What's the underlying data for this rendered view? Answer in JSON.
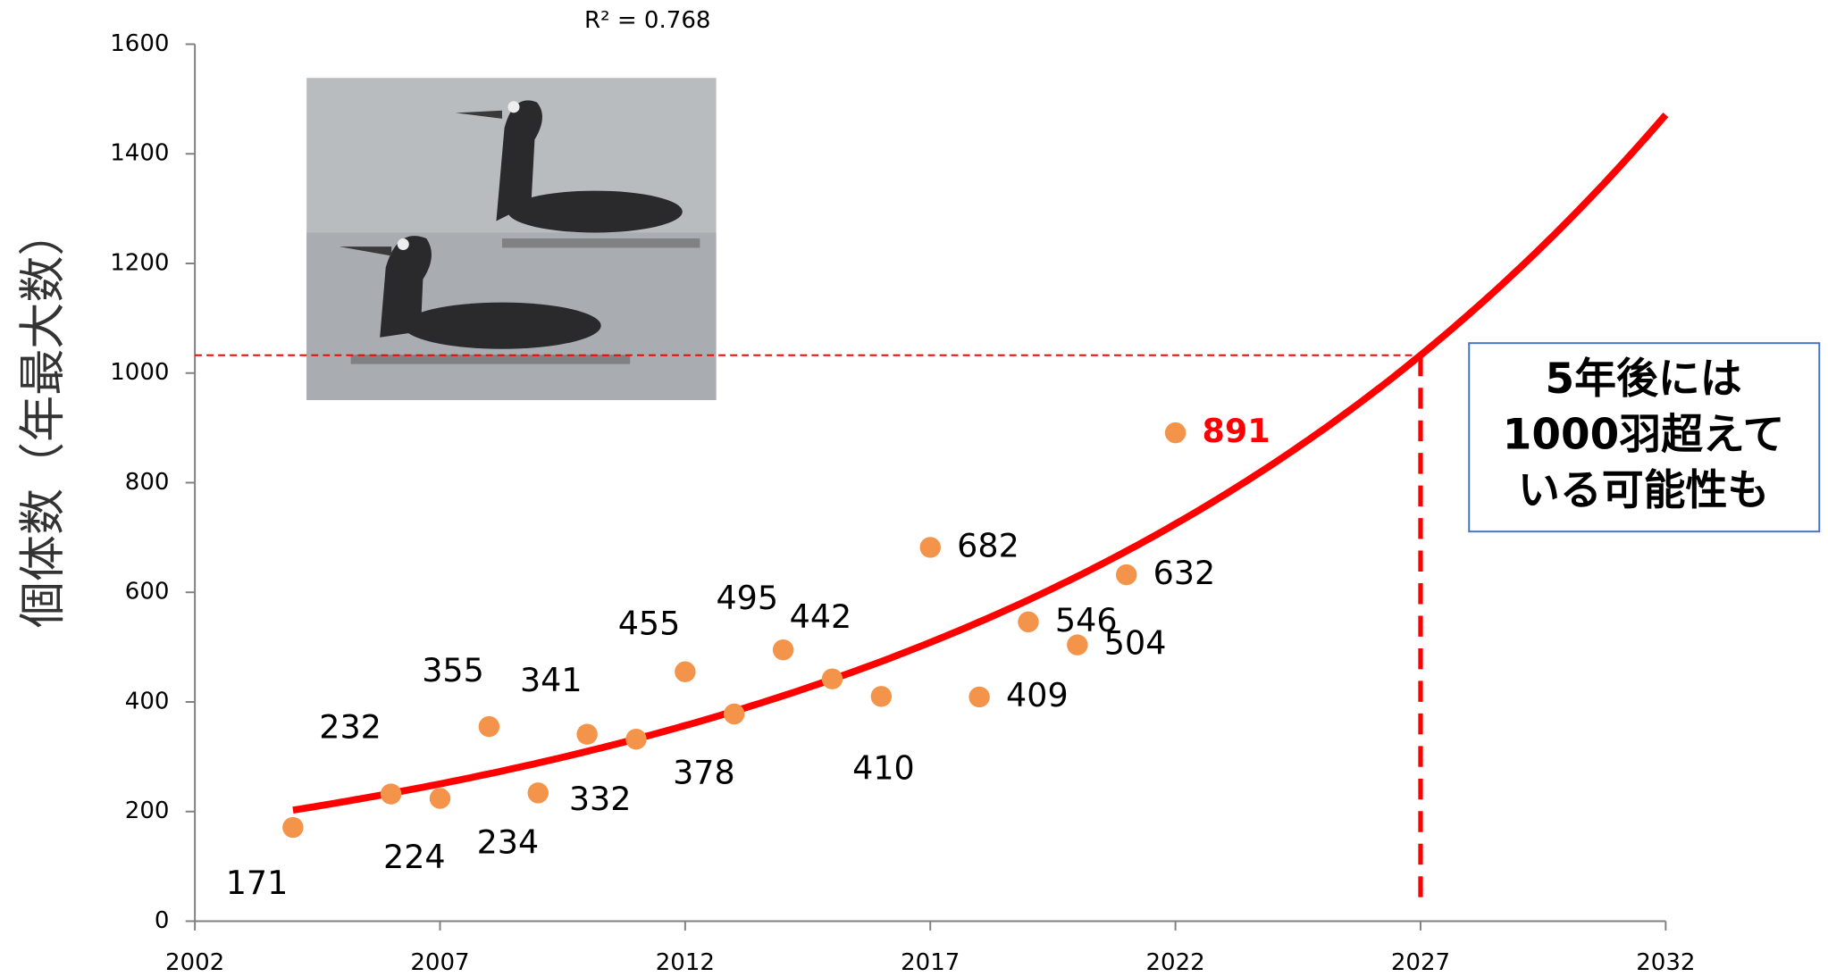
{
  "chart_data": {
    "type": "scatter",
    "r2_label": "R² = 0.768",
    "y_label": "個体数（年最大数）",
    "x": [
      2004,
      2006,
      2007,
      2008,
      2009,
      2010,
      2011,
      2012,
      2013,
      2014,
      2015,
      2016,
      2017,
      2018,
      2019,
      2020,
      2021,
      2022
    ],
    "values": [
      171,
      232,
      224,
      355,
      234,
      341,
      332,
      455,
      378,
      495,
      442,
      410,
      682,
      409,
      546,
      504,
      632,
      891
    ],
    "color": "#f4944a",
    "trendline": {
      "type": "exponential",
      "color": "#ff0000"
    },
    "xlim": [
      2002,
      2032
    ],
    "xticks": [
      2002,
      2007,
      2012,
      2017,
      2022,
      2027,
      2032
    ],
    "ylim": [
      0,
      1600
    ],
    "yticks": [
      0,
      200,
      400,
      600,
      800,
      1000,
      1200,
      1400,
      1600
    ],
    "annotation": [
      "5年後には",
      "1000羽超えて",
      "いる可能性も"
    ]
  }
}
